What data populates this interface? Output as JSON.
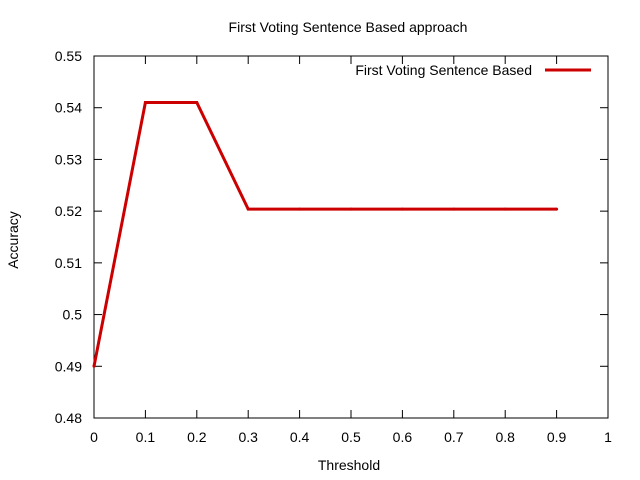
{
  "chart_data": {
    "type": "line",
    "title": "First Voting Sentence Based approach",
    "xlabel": "Threshold",
    "ylabel": "Accuracy",
    "xlim": [
      0,
      1
    ],
    "ylim": [
      0.48,
      0.55
    ],
    "xticks": [
      0,
      0.1,
      0.2,
      0.3,
      0.4,
      0.5,
      0.6,
      0.7,
      0.8,
      0.9,
      1
    ],
    "xtick_labels": [
      "0",
      "0.1",
      "0.2",
      "0.3",
      "0.4",
      "0.5",
      "0.6",
      "0.7",
      "0.8",
      "0.9",
      "1"
    ],
    "yticks": [
      0.48,
      0.49,
      0.5,
      0.51,
      0.52,
      0.53,
      0.54,
      0.55
    ],
    "ytick_labels": [
      "0.48",
      "0.49",
      "0.5",
      "0.51",
      "0.52",
      "0.53",
      "0.54",
      "0.55"
    ],
    "grid": false,
    "legend_position": "top-right",
    "series": [
      {
        "name": "First Voting Sentence Based",
        "color": "#cc0000",
        "x": [
          0,
          0.1,
          0.2,
          0.3,
          0.4,
          0.5,
          0.6,
          0.7,
          0.8,
          0.9
        ],
        "y": [
          0.49,
          0.541,
          0.541,
          0.5204,
          0.5204,
          0.5204,
          0.5204,
          0.5204,
          0.5204,
          0.5204
        ]
      }
    ]
  }
}
